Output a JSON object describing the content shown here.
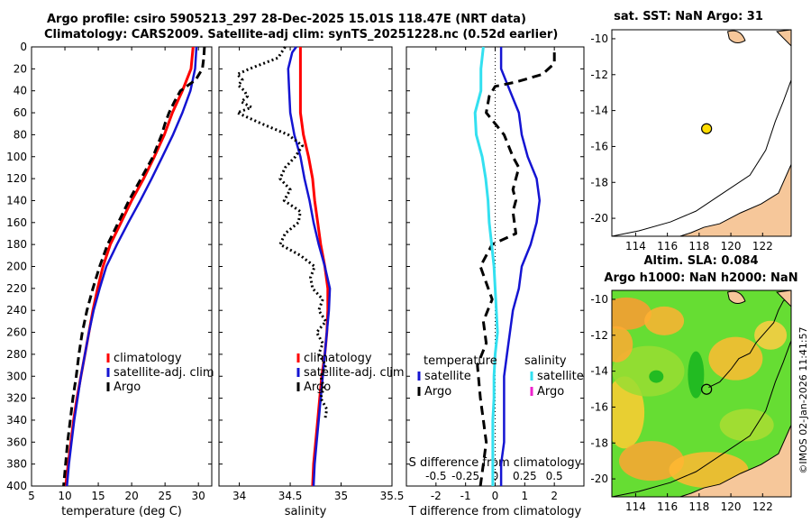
{
  "header": {
    "line1": "Argo profile: csiro 5905213_297 28-Dec-2025 15.01S 118.47E (NRT data)",
    "line2": "Climatology: CARS2009. Satellite-adj clim: synTS_20251228.nc (0.52d earlier)"
  },
  "colors": {
    "climatology": "#ff0000",
    "satellite": "#1414d2",
    "argo": "#000000",
    "s_satellite": "#33e0f0",
    "s_argo": "#ee22cc",
    "land": "#f6c79a",
    "map_bg": "#66dd33"
  },
  "chart_data": [
    {
      "id": "temperature",
      "type": "line",
      "xlabel": "temperature (deg C)",
      "ylabel": "",
      "xlim": [
        5,
        32
      ],
      "ylim": [
        400,
        0
      ],
      "xticks": [
        5,
        10,
        15,
        20,
        25,
        30
      ],
      "yticks": [
        0,
        20,
        40,
        60,
        80,
        100,
        120,
        140,
        160,
        180,
        200,
        220,
        240,
        260,
        280,
        300,
        320,
        340,
        360,
        380,
        400
      ],
      "legend": [
        "climatology",
        "satellite-adj. clim",
        "Argo"
      ],
      "legend_loc": "lower-right",
      "series": [
        {
          "name": "climatology",
          "depth": [
            0,
            20,
            40,
            60,
            80,
            100,
            120,
            140,
            160,
            180,
            200,
            220,
            240,
            260,
            280,
            300,
            320,
            340,
            360,
            380,
            400
          ],
          "values": [
            29.2,
            28.9,
            27.6,
            26.1,
            24.9,
            23.4,
            21.8,
            20.0,
            18.4,
            16.8,
            15.7,
            14.9,
            14.2,
            13.6,
            13.0,
            12.4,
            11.8,
            11.3,
            10.9,
            10.5,
            10.1
          ]
        },
        {
          "name": "satellite-adj. clim",
          "depth": [
            0,
            20,
            40,
            60,
            80,
            100,
            120,
            140,
            160,
            180,
            200,
            220,
            240,
            260,
            280,
            300,
            320,
            340,
            360,
            380,
            400
          ],
          "values": [
            29.7,
            29.5,
            28.8,
            27.6,
            26.2,
            24.6,
            23.0,
            21.3,
            19.5,
            17.8,
            16.2,
            15.2,
            14.3,
            13.6,
            13.0,
            12.4,
            11.9,
            11.4,
            11.0,
            10.6,
            10.3
          ]
        },
        {
          "name": "Argo",
          "depth": [
            0,
            10,
            20,
            30,
            40,
            50,
            60,
            70,
            80,
            100,
            120,
            140,
            160,
            180,
            200,
            220,
            240,
            260,
            280,
            300,
            320,
            340,
            360,
            380,
            400
          ],
          "values": [
            30.9,
            30.8,
            30.6,
            29.6,
            27.3,
            26.4,
            25.6,
            25.0,
            24.5,
            23.2,
            21.4,
            19.6,
            18.0,
            16.4,
            15.2,
            14.2,
            13.3,
            12.6,
            12.1,
            11.7,
            11.2,
            10.8,
            10.4,
            10.1,
            9.8
          ]
        }
      ]
    },
    {
      "id": "salinity",
      "type": "line",
      "xlabel": "salinity",
      "xlim": [
        33.8,
        35.5
      ],
      "ylim": [
        400,
        0
      ],
      "xticks": [
        34,
        34.5,
        35,
        35.5
      ],
      "legend": [
        "climatology",
        "satellite-adj. clim",
        "Argo"
      ],
      "legend_loc": "lower-right",
      "series": [
        {
          "name": "climatology",
          "depth": [
            0,
            20,
            40,
            60,
            80,
            100,
            120,
            140,
            160,
            180,
            200,
            220,
            240,
            260,
            280,
            300,
            320,
            340,
            360,
            380,
            400
          ],
          "values": [
            34.6,
            34.6,
            34.6,
            34.6,
            34.63,
            34.68,
            34.72,
            34.74,
            34.77,
            34.8,
            34.84,
            34.87,
            34.87,
            34.86,
            34.84,
            34.81,
            34.79,
            34.77,
            34.75,
            34.73,
            34.72
          ]
        },
        {
          "name": "satellite-adj. clim",
          "depth": [
            0,
            5,
            20,
            40,
            60,
            80,
            100,
            120,
            140,
            160,
            180,
            200,
            220,
            240,
            260,
            280,
            300,
            320,
            340,
            360,
            380,
            400
          ],
          "values": [
            34.56,
            34.52,
            34.48,
            34.49,
            34.5,
            34.54,
            34.6,
            34.64,
            34.69,
            34.73,
            34.78,
            34.84,
            34.89,
            34.88,
            34.86,
            34.84,
            34.82,
            34.8,
            34.78,
            34.76,
            34.74,
            34.73
          ]
        },
        {
          "name": "Argo",
          "depth": [
            0,
            10,
            20,
            25,
            30,
            35,
            40,
            45,
            50,
            55,
            60,
            65,
            70,
            80,
            90,
            100,
            110,
            120,
            130,
            140,
            150,
            160,
            170,
            180,
            190,
            200,
            210,
            220,
            230,
            240,
            250,
            260,
            270,
            280,
            290,
            300,
            310,
            320,
            330,
            340
          ],
          "values": [
            34.45,
            34.38,
            34.1,
            33.98,
            34.03,
            33.99,
            34.05,
            34.08,
            34.02,
            34.12,
            33.98,
            34.1,
            34.22,
            34.48,
            34.62,
            34.55,
            34.45,
            34.4,
            34.5,
            34.44,
            34.6,
            34.58,
            34.45,
            34.4,
            34.6,
            34.74,
            34.7,
            34.72,
            34.82,
            34.78,
            34.85,
            34.76,
            34.82,
            34.78,
            34.85,
            34.8,
            34.83,
            34.8,
            34.86,
            34.84
          ]
        }
      ]
    },
    {
      "id": "difference",
      "type": "line",
      "xlabel": "T difference from climatology",
      "x2label": "S difference from climatology",
      "xlim": [
        -3,
        3
      ],
      "ylim": [
        400,
        0
      ],
      "xticks": [
        -2,
        -1,
        0,
        1,
        2
      ],
      "x2ticks": [
        "-0.5",
        "-0.25",
        "0",
        "0.25",
        "0.5"
      ],
      "legend_t": {
        "title": "temperature",
        "items": [
          "satellite",
          "Argo"
        ]
      },
      "legend_s": {
        "title": "salinity",
        "items": [
          "satellite",
          "Argo"
        ]
      },
      "series": [
        {
          "name": "T satellite",
          "depth": [
            0,
            20,
            40,
            60,
            80,
            100,
            120,
            140,
            160,
            180,
            200,
            220,
            240,
            260,
            280,
            300,
            320,
            340,
            360,
            380,
            400
          ],
          "values": [
            0.2,
            0.2,
            0.5,
            0.8,
            0.9,
            1.1,
            1.4,
            1.5,
            1.4,
            1.2,
            0.9,
            0.8,
            0.6,
            0.5,
            0.4,
            0.3,
            0.3,
            0.3,
            0.3,
            0.2,
            0.2
          ]
        },
        {
          "name": "T Argo",
          "depth": [
            5,
            15,
            25,
            32,
            36,
            45,
            60,
            70,
            80,
            100,
            110,
            130,
            140,
            150,
            170,
            180,
            200,
            230,
            250,
            270,
            290,
            320,
            340,
            360,
            380,
            400
          ],
          "values": [
            2.0,
            2.0,
            1.6,
            0.7,
            0.0,
            -0.2,
            -0.3,
            0.0,
            0.3,
            0.6,
            0.8,
            0.6,
            0.7,
            0.6,
            0.7,
            -0.1,
            -0.5,
            -0.1,
            -0.4,
            -0.3,
            -0.6,
            -0.5,
            -0.4,
            -0.3,
            -0.4,
            -0.5
          ]
        },
        {
          "name": "S satellite",
          "depth": [
            0,
            20,
            40,
            60,
            80,
            100,
            120,
            140,
            160,
            180,
            200,
            220,
            240,
            260,
            280,
            300,
            320,
            340,
            360,
            380,
            400
          ],
          "values": [
            -0.1,
            -0.12,
            -0.12,
            -0.17,
            -0.16,
            -0.11,
            -0.08,
            -0.06,
            -0.05,
            -0.03,
            -0.01,
            0.0,
            0.01,
            0.02,
            0.0,
            -0.01,
            -0.01,
            -0.02,
            -0.02,
            -0.02,
            -0.02
          ]
        }
      ]
    },
    {
      "id": "sst-map",
      "type": "map",
      "title": "sat. SST: NaN Argo: 31",
      "xticks": [
        114,
        116,
        118,
        120,
        122
      ],
      "yticks": [
        -10,
        -12,
        -14,
        -16,
        -18,
        -20
      ],
      "xlim": [
        112.5,
        123.8
      ],
      "ylim": [
        -21,
        -9.5
      ],
      "marker": {
        "lon": 118.47,
        "lat": -15.01
      }
    },
    {
      "id": "sla-map",
      "type": "map",
      "title_line1": "Altim. SLA: 0.084",
      "title_line2": "Argo h1000: NaN h2000: NaN",
      "xticks": [
        114,
        116,
        118,
        120,
        122
      ],
      "yticks": [
        -10,
        -12,
        -14,
        -16,
        -18,
        -20
      ],
      "xlim": [
        112.5,
        123.8
      ],
      "ylim": [
        -21,
        -9.5
      ],
      "marker": {
        "lon": 118.47,
        "lat": -15.01
      }
    }
  ],
  "footer": {
    "stamp": "©IMOS 02-Jan-2026 11:41:57"
  }
}
